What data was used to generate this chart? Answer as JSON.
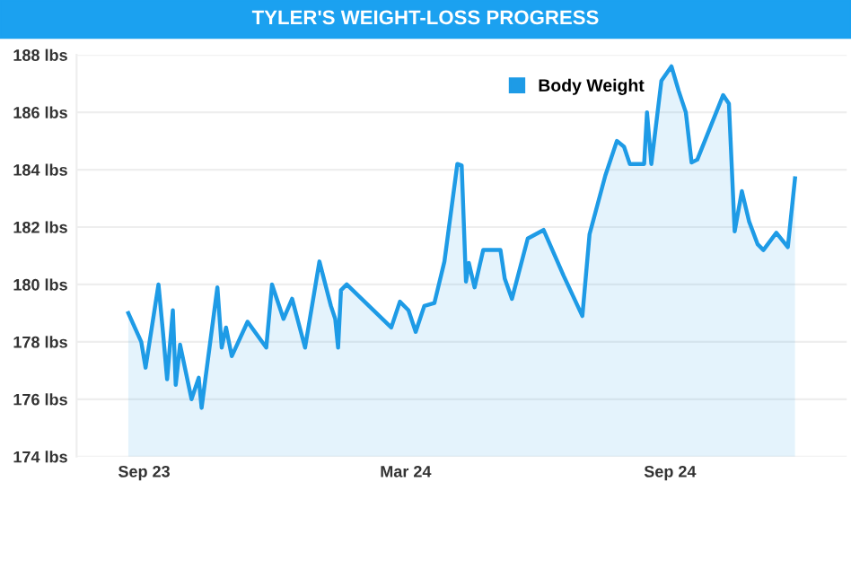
{
  "chart_data": {
    "type": "area",
    "title": "TYLER'S WEIGHT-LOSS PROGRESS",
    "x": [
      "2023-08-21",
      "2023-08-30",
      "2023-09-02",
      "2023-09-11",
      "2023-09-14",
      "2023-09-17",
      "2023-09-21",
      "2023-09-23",
      "2023-09-26",
      "2023-10-04",
      "2023-10-09",
      "2023-10-11",
      "2023-10-22",
      "2023-10-25",
      "2023-10-28",
      "2023-11-01",
      "2023-11-12",
      "2023-11-25",
      "2023-11-29",
      "2023-12-07",
      "2023-12-13",
      "2023-12-22",
      "2024-01-01",
      "2024-01-09",
      "2024-01-12",
      "2024-01-14",
      "2024-01-16",
      "2024-01-20",
      "2024-02-20",
      "2024-02-26",
      "2024-03-03",
      "2024-03-08",
      "2024-03-14",
      "2024-03-21",
      "2024-03-28",
      "2024-04-06",
      "2024-04-09",
      "2024-04-12",
      "2024-04-14",
      "2024-04-18",
      "2024-04-24",
      "2024-05-06",
      "2024-05-09",
      "2024-05-14",
      "2024-05-25",
      "2024-06-05",
      "2024-06-19",
      "2024-07-02",
      "2024-07-07",
      "2024-07-18",
      "2024-07-26",
      "2024-07-31",
      "2024-08-04",
      "2024-08-14",
      "2024-08-16",
      "2024-08-19",
      "2024-08-26",
      "2024-09-02",
      "2024-09-07",
      "2024-09-12",
      "2024-09-16",
      "2024-09-20",
      "2024-10-08",
      "2024-10-12",
      "2024-10-16",
      "2024-10-21",
      "2024-10-26",
      "2024-11-01",
      "2024-11-05",
      "2024-11-14",
      "2024-11-22",
      "2024-11-27"
    ],
    "series": [
      {
        "name": "Body Weight",
        "color": "#1e9be6",
        "values": [
          179.0,
          178.0,
          177.1,
          180.0,
          178.4,
          176.7,
          179.1,
          176.5,
          177.9,
          176.0,
          176.75,
          175.7,
          179.9,
          177.8,
          178.5,
          177.5,
          178.7,
          177.8,
          180.0,
          178.8,
          179.5,
          177.8,
          180.8,
          179.25,
          178.8,
          177.8,
          179.8,
          180.0,
          178.5,
          179.4,
          179.1,
          178.35,
          179.25,
          179.35,
          180.8,
          184.2,
          184.15,
          180.1,
          180.75,
          179.9,
          181.2,
          181.2,
          180.2,
          179.5,
          181.6,
          181.9,
          180.3,
          178.9,
          181.75,
          183.8,
          185.0,
          184.8,
          184.2,
          184.2,
          186.0,
          184.2,
          187.1,
          187.6,
          186.75,
          186.0,
          184.25,
          184.35,
          186.6,
          186.3,
          181.85,
          183.25,
          182.2,
          181.4,
          181.2,
          181.8,
          181.3,
          183.7
        ]
      }
    ],
    "xlim": [
      "2023-07-16",
      "2025-01-02"
    ],
    "xticks": [
      {
        "value": "2023-09-01",
        "label": "Sep 23"
      },
      {
        "value": "2024-03-01",
        "label": "Mar 24"
      },
      {
        "value": "2024-09-01",
        "label": "Sep 24"
      }
    ],
    "ylim": [
      174,
      188
    ],
    "yticks": [
      {
        "value": 174,
        "label": "174 lbs"
      },
      {
        "value": 176,
        "label": "176 lbs"
      },
      {
        "value": 178,
        "label": "178 lbs"
      },
      {
        "value": 180,
        "label": "180 lbs"
      },
      {
        "value": 182,
        "label": "182 lbs"
      },
      {
        "value": 184,
        "label": "184 lbs"
      },
      {
        "value": 186,
        "label": "186 lbs"
      },
      {
        "value": 188,
        "label": "188 lbs"
      }
    ],
    "grid": "y",
    "legend": "top",
    "marker": "none",
    "line_style": "solid"
  }
}
